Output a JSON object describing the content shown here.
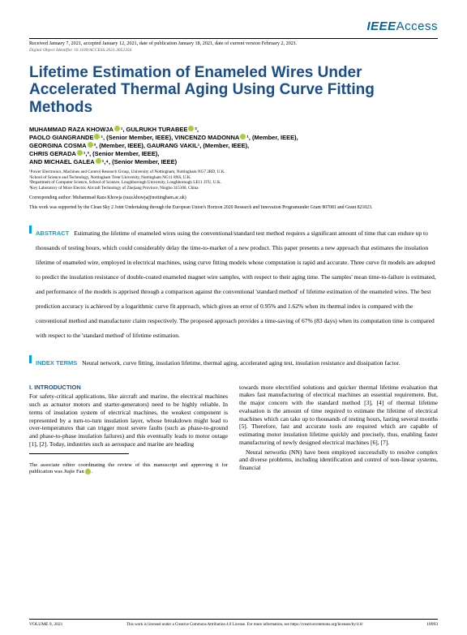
{
  "logo": {
    "ieee": "IEEE",
    "access": "Access"
  },
  "received": "Received January 7, 2021, accepted January 12, 2021, date of publication January 18, 2021, date of current version February 2, 2021.",
  "doi": "Digital Object Identifier 10.1109/ACCESS.2021.3052356",
  "title": "Lifetime Estimation of Enameled Wires Under Accelerated Thermal Aging Using Curve Fitting Methods",
  "authors_html": "MUHAMMAD RAZA KHOWJA[O]¹, GULRUKH TURABEE[O]²,\nPAOLO GIANGRANDE[O]¹, (Senior Member, IEEE), VINCENZO MADONNA[O]¹, (Member, IEEE),\nGEORGINA COSMA[O]³, (Member, IEEE), GAURANG VAKIL¹, (Member, IEEE),\nCHRIS GERADA[O]¹,³, (Senior Member, IEEE),\nAND MICHAEL GALEA[O]¹,⁴, (Senior Member, IEEE)",
  "affiliations": [
    "¹Power Electronics, Machines and Control Research Group, University of Nottingham, Nottingham NG7 2RD, U.K.",
    "²School of Science and Technology, Nottingham Trent University, Nottingham NG11 8NS, U.K.",
    "³Department of Computer Science, School of Science, Loughborough University, Loughborough LE11 3TU, U.K.",
    "⁴Key Laboratory of More Electric Aircraft Technology of Zhejiang Province, Ningbo 315100, China"
  ],
  "corresponding": "Corresponding author: Muhammad Raza Khowja (raza.khowja@nottingham.ac.uk)",
  "funding": "This work was supported by the Clean Sky 2 Joint Undertaking through the European Union's Horizon 2020 Research and Innovation Programunder Grant 807081 and Grant 821023.",
  "abstract_label": "ABSTRACT",
  "abstract": "Estimating the lifetime of enameled wires using the conventional/standard test method requires a significant amount of time that can endure up to thousands of testing hours, which could considerably delay the time-to-market of a new product. This paper presents a new approach that estimates the insulation lifetime of enameled wire, employed in electrical machines, using curve fitting models whose computation is rapid and accurate. Three curve fit models are adopted to predict the insulation resistance of double-coated enameled magnet wire samples, with respect to their aging time. The samples' mean time-to-failure is estimated, and performance of the models is apprised through a comparison against the conventional 'standard method' of lifetime estimation of the enameled wires. The best prediction accuracy is achieved by a logarithmic curve fit approach, which gives an error of 0.95% and 1.62% when its thermal index is compared with the conventional method and manufacturer claim respectively. The proposed approach provides a time-saving of 67% (83 days) when its computation time is compared with respect to the 'standard method' of lifetime estimation.",
  "index_terms_label": "INDEX TERMS",
  "index_terms": "Neural network, curve fitting, insulation lifetime, thermal aging, accelerated aging test, insulation resistance and dissipation factor.",
  "intro_heading": "I. INTRODUCTION",
  "intro_col1": "For safety-critical applications, like aircraft and marine, the electrical machines such as actuator motors and starter-generators) need to be highly reliable. In terms of insulation system of electrical machines, the weakest component is represented by a turn-to-turn insulation layer, whose breakdown might lead to over-temperatures that can trigger most severe faults (such as phase-to-ground and phase-to-phase insulation failures) and this eventually leads to motor outage [1], [2]. Today, industries such as aerospace and marine are heading",
  "assoc_ed": "The associate editor coordinating the review of this manuscript and approving it for publication was Jiajie Fan",
  "intro_col2": "towards more electrified solutions and quicker thermal lifetime evaluation that makes fast manufacturing of electrical machines an essential requirement. But, the major concern with the standard method [3], [4] of thermal lifetime evaluation is the amount of time required to estimate the lifetime of electrical machines which can take up to thousands of testing hours, lasting several months [5]. Therefore, fast and accurate tools are required which are capable of estimating motor insulation lifetime quickly and precisely, thus, enabling faster manufacturing of newly designed electrical machines [6], [7].",
  "intro_col2_p2": "Neural networks (NN) have been employed successfully to resolve complex and diverse problems, including identification and control of non-linear systems, financial",
  "footer": {
    "volume": "VOLUME 9, 2021",
    "license": "This work is licensed under a Creative Commons Attribution 4.0 License. For more information, see https://creativecommons.org/licenses/by/4.0/",
    "page": "18993"
  },
  "colors": {
    "ieee_blue": "#00629b",
    "heading_blue": "#1a4e8a",
    "accent_cyan": "#00a4e4",
    "orcid_green": "#a6ce39"
  }
}
